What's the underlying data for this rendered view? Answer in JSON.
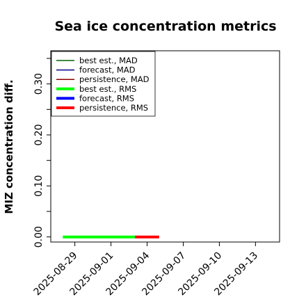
{
  "chart_data": {
    "type": "line",
    "title": "Sea ice concentration metrics",
    "xlabel": "",
    "ylabel": "MIZ concentration diff.",
    "x_ticks": [
      "2025-08-29",
      "2025-09-01",
      "2025-09-04",
      "2025-09-07",
      "2025-09-10",
      "2025-09-13"
    ],
    "highlight_tick": "2025-09-04",
    "highlight_color": "#228b22",
    "xlim": [
      "2025-08-27",
      "2025-09-15"
    ],
    "y_ticks": [
      "0.00",
      "0.10",
      "0.20",
      "0.30"
    ],
    "ylim": [
      -0.01,
      0.365
    ],
    "legend_position": "upper-left",
    "series": [
      {
        "name": "best est., MAD",
        "color": "#006400",
        "width": "thin",
        "x": [],
        "y": []
      },
      {
        "name": "forecast,  MAD",
        "color": "#00008b",
        "width": "thin",
        "x": [],
        "y": []
      },
      {
        "name": "persistence, MAD",
        "color": "#8b0000",
        "width": "thin",
        "x": [],
        "y": []
      },
      {
        "name": "best est., RMS",
        "color": "#00ff00",
        "width": "thick",
        "x": [
          "2025-08-28",
          "2025-09-03"
        ],
        "y": [
          0.0,
          0.0
        ]
      },
      {
        "name": "forecast,  RMS",
        "color": "#0000ff",
        "width": "thick",
        "x": [],
        "y": []
      },
      {
        "name": "persistence, RMS",
        "color": "#ff0000",
        "width": "thick",
        "x": [
          "2025-09-03",
          "2025-09-05"
        ],
        "y": [
          0.0,
          0.0
        ]
      }
    ]
  }
}
